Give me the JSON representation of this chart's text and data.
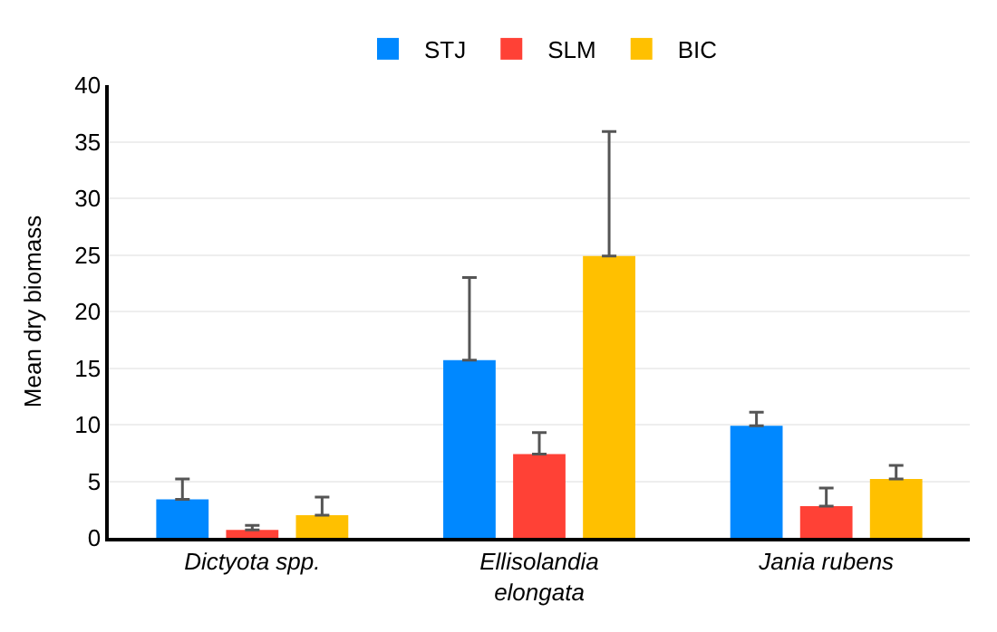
{
  "chart_data": {
    "type": "bar",
    "ylabel": "Mean dry biomass",
    "categories": [
      "Dictyota spp.",
      "Ellisolandia elongata",
      "Jania rubens"
    ],
    "series": [
      {
        "name": "STJ",
        "color": "#0088ff",
        "values": [
          3.4,
          15.7,
          9.9
        ],
        "errors": [
          [
            3.4,
            5.2
          ],
          [
            15.7,
            23.0
          ],
          [
            9.9,
            11.1
          ]
        ]
      },
      {
        "name": "SLM",
        "color": "#ff4136",
        "values": [
          0.7,
          7.4,
          2.8
        ],
        "errors": [
          [
            0.7,
            1.1
          ],
          [
            7.4,
            9.3
          ],
          [
            2.8,
            4.4
          ]
        ]
      },
      {
        "name": "BIC",
        "color": "#ffc000",
        "values": [
          2.0,
          24.9,
          5.2
        ],
        "errors": [
          [
            2.0,
            3.6
          ],
          [
            24.9,
            35.9
          ],
          [
            5.2,
            6.4
          ]
        ]
      }
    ],
    "ylim": [
      0,
      40
    ],
    "yticks": [
      0,
      5,
      10,
      15,
      20,
      25,
      30,
      35,
      40
    ],
    "grid": "y",
    "legend": "top"
  }
}
